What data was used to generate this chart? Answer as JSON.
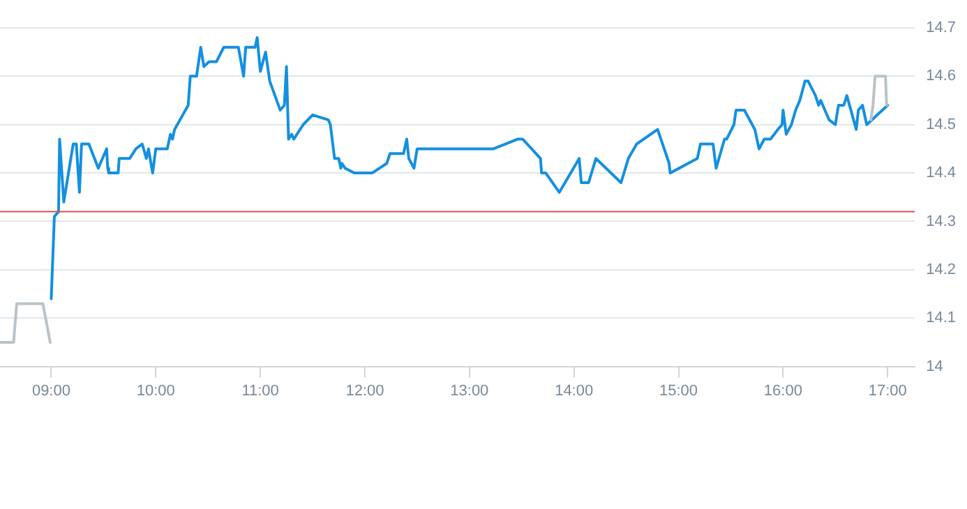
{
  "chart_data": {
    "type": "line",
    "xlim": [
      8.51,
      17.26
    ],
    "ylim": [
      14,
      14.7
    ],
    "xticks": [
      {
        "value": 9,
        "label": "09:00"
      },
      {
        "value": 10,
        "label": "10:00"
      },
      {
        "value": 11,
        "label": "11:00"
      },
      {
        "value": 12,
        "label": "12:00"
      },
      {
        "value": 13,
        "label": "13:00"
      },
      {
        "value": 14,
        "label": "14:00"
      },
      {
        "value": 15,
        "label": "15:00"
      },
      {
        "value": 16,
        "label": "16:00"
      },
      {
        "value": 17,
        "label": "17:00"
      }
    ],
    "yticks": [
      14,
      14.1,
      14.2,
      14.3,
      14.4,
      14.5,
      14.6,
      14.7
    ],
    "grid": "y",
    "legend": false,
    "marker": "none",
    "line_style": "solid",
    "ref_lines": [
      {
        "axis": "y",
        "value": 14.32,
        "color": "#d9534f"
      }
    ],
    "series": [
      {
        "color": "#b9c3c9",
        "x": [
          8.51,
          8.64,
          8.67,
          8.92,
          8.99
        ],
        "values": [
          14.05,
          14.05,
          14.13,
          14.13,
          14.05
        ]
      },
      {
        "color": "#b9c3c9",
        "x": [
          16.84,
          16.86,
          16.88,
          16.98,
          16.99
        ],
        "values": [
          14.51,
          14.54,
          14.6,
          14.6,
          14.54
        ]
      },
      {
        "color": "#1490df",
        "x": [
          9.0,
          9.03,
          9.07,
          9.08,
          9.12,
          9.21,
          9.24,
          9.27,
          9.29,
          9.36,
          9.45,
          9.53,
          9.54,
          9.55,
          9.64,
          9.65,
          9.75,
          9.81,
          9.87,
          9.91,
          9.93,
          9.97,
          10.0,
          10.11,
          10.14,
          10.16,
          10.18,
          10.31,
          10.33,
          10.39,
          10.43,
          10.46,
          10.51,
          10.58,
          10.65,
          10.79,
          10.84,
          10.86,
          10.95,
          10.97,
          11.0,
          11.05,
          11.09,
          11.19,
          11.23,
          11.25,
          11.27,
          11.3,
          11.32,
          11.41,
          11.5,
          11.65,
          11.67,
          11.71,
          11.75,
          11.77,
          11.78,
          11.81,
          11.9,
          12.07,
          12.21,
          12.24,
          12.37,
          12.4,
          12.42,
          12.47,
          12.5,
          13.23,
          13.46,
          13.51,
          13.68,
          13.69,
          13.73,
          13.86,
          14.05,
          14.07,
          14.14,
          14.21,
          14.45,
          14.52,
          14.6,
          14.8,
          14.91,
          14.92,
          15.18,
          15.21,
          15.33,
          15.36,
          15.44,
          15.46,
          15.53,
          15.55,
          15.63,
          15.73,
          15.77,
          15.82,
          15.88,
          15.95,
          15.99,
          16.0,
          16.03,
          16.08,
          16.12,
          16.16,
          16.21,
          16.24,
          16.31,
          16.34,
          16.36,
          16.44,
          16.5,
          16.53,
          16.58,
          16.61,
          16.7,
          16.72,
          16.76,
          16.8,
          17.0
        ],
        "values": [
          14.14,
          14.31,
          14.32,
          14.47,
          14.34,
          14.46,
          14.46,
          14.36,
          14.46,
          14.46,
          14.41,
          14.45,
          14.41,
          14.4,
          14.4,
          14.43,
          14.43,
          14.45,
          14.46,
          14.43,
          14.45,
          14.4,
          14.45,
          14.45,
          14.48,
          14.47,
          14.49,
          14.54,
          14.6,
          14.6,
          14.66,
          14.62,
          14.63,
          14.63,
          14.66,
          14.66,
          14.6,
          14.66,
          14.66,
          14.68,
          14.61,
          14.65,
          14.59,
          14.53,
          14.54,
          14.62,
          14.47,
          14.48,
          14.47,
          14.5,
          14.52,
          14.51,
          14.5,
          14.43,
          14.43,
          14.41,
          14.42,
          14.41,
          14.4,
          14.4,
          14.42,
          14.44,
          14.44,
          14.47,
          14.43,
          14.41,
          14.45,
          14.45,
          14.47,
          14.47,
          14.43,
          14.4,
          14.4,
          14.36,
          14.43,
          14.38,
          14.38,
          14.43,
          14.38,
          14.43,
          14.46,
          14.49,
          14.42,
          14.4,
          14.43,
          14.46,
          14.46,
          14.41,
          14.47,
          14.47,
          14.5,
          14.53,
          14.53,
          14.49,
          14.45,
          14.47,
          14.47,
          14.49,
          14.5,
          14.53,
          14.48,
          14.5,
          14.53,
          14.55,
          14.59,
          14.59,
          14.56,
          14.54,
          14.55,
          14.51,
          14.5,
          14.54,
          14.54,
          14.56,
          14.49,
          14.53,
          14.54,
          14.5,
          14.54
        ]
      }
    ]
  }
}
